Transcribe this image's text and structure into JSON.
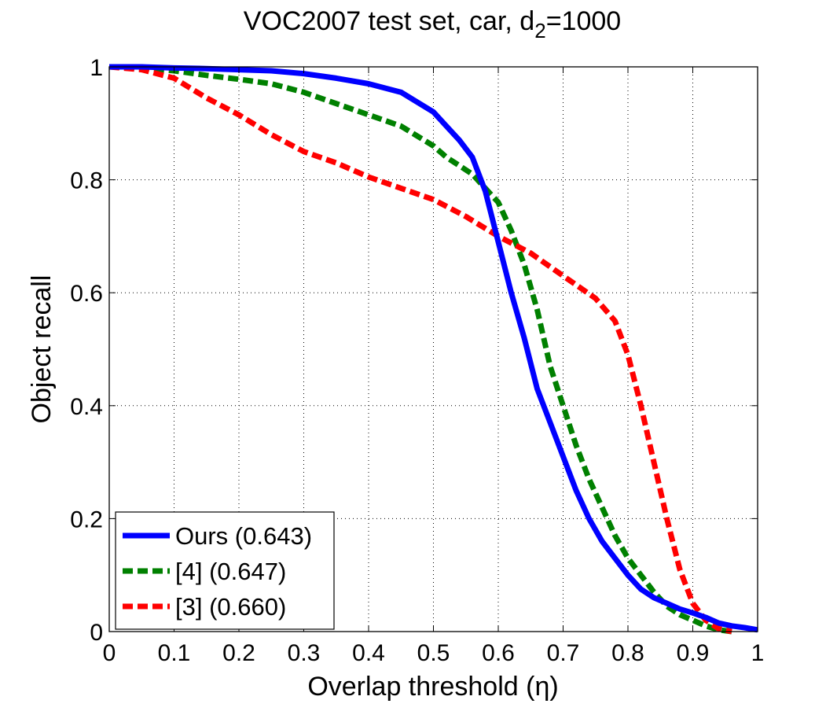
{
  "chart_data": {
    "type": "line",
    "title_main": "VOC2007 test set, car, d",
    "title_sub": "2",
    "title_tail": "=1000",
    "xlabel": "Overlap threshold (η)",
    "ylabel": "Object recall",
    "xlim": [
      0,
      1
    ],
    "ylim": [
      0,
      1
    ],
    "xticks": [
      "0",
      "0.1",
      "0.2",
      "0.3",
      "0.4",
      "0.5",
      "0.6",
      "0.7",
      "0.8",
      "0.9",
      "1"
    ],
    "yticks": [
      "0",
      "0.2",
      "0.4",
      "0.6",
      "0.8",
      "1"
    ],
    "grid": true,
    "legend_position": "bottom-left",
    "series": [
      {
        "name": "Ours (0.643)",
        "color": "#0000ff",
        "dash": "solid",
        "x": [
          0,
          0.05,
          0.1,
          0.15,
          0.2,
          0.25,
          0.3,
          0.35,
          0.4,
          0.45,
          0.5,
          0.52,
          0.54,
          0.56,
          0.58,
          0.6,
          0.62,
          0.64,
          0.66,
          0.68,
          0.7,
          0.72,
          0.74,
          0.76,
          0.78,
          0.8,
          0.82,
          0.84,
          0.86,
          0.88,
          0.9,
          0.92,
          0.94,
          0.96,
          0.98,
          1.0
        ],
        "y": [
          1.0,
          1.0,
          0.998,
          0.997,
          0.995,
          0.993,
          0.988,
          0.98,
          0.97,
          0.955,
          0.92,
          0.895,
          0.87,
          0.84,
          0.78,
          0.69,
          0.6,
          0.52,
          0.43,
          0.37,
          0.31,
          0.25,
          0.2,
          0.16,
          0.13,
          0.1,
          0.075,
          0.06,
          0.05,
          0.04,
          0.033,
          0.025,
          0.015,
          0.01,
          0.007,
          0.003
        ]
      },
      {
        "name": "[4] (0.647)",
        "color": "#008000",
        "dash": "dashed",
        "x": [
          0,
          0.05,
          0.1,
          0.15,
          0.2,
          0.25,
          0.3,
          0.35,
          0.4,
          0.45,
          0.5,
          0.52,
          0.54,
          0.56,
          0.58,
          0.6,
          0.62,
          0.64,
          0.66,
          0.68,
          0.7,
          0.72,
          0.74,
          0.76,
          0.78,
          0.8,
          0.82,
          0.84,
          0.86,
          0.88,
          0.9,
          0.92,
          0.94,
          0.96
        ],
        "y": [
          1.0,
          0.998,
          0.993,
          0.985,
          0.978,
          0.97,
          0.955,
          0.935,
          0.915,
          0.895,
          0.86,
          0.84,
          0.825,
          0.81,
          0.785,
          0.76,
          0.71,
          0.65,
          0.57,
          0.47,
          0.4,
          0.33,
          0.27,
          0.22,
          0.17,
          0.13,
          0.1,
          0.07,
          0.045,
          0.03,
          0.02,
          0.01,
          0.003,
          0.0
        ]
      },
      {
        "name": "[3] (0.660)",
        "color": "#ff0000",
        "dash": "dashed",
        "x": [
          0,
          0.05,
          0.1,
          0.15,
          0.2,
          0.25,
          0.3,
          0.35,
          0.4,
          0.45,
          0.5,
          0.55,
          0.6,
          0.65,
          0.7,
          0.75,
          0.78,
          0.8,
          0.82,
          0.84,
          0.86,
          0.88,
          0.9,
          0.92,
          0.94,
          0.96
        ],
        "y": [
          1.0,
          0.995,
          0.98,
          0.945,
          0.915,
          0.88,
          0.85,
          0.83,
          0.805,
          0.785,
          0.765,
          0.735,
          0.7,
          0.67,
          0.63,
          0.59,
          0.55,
          0.49,
          0.4,
          0.3,
          0.2,
          0.11,
          0.05,
          0.02,
          0.005,
          0.0
        ]
      }
    ]
  }
}
